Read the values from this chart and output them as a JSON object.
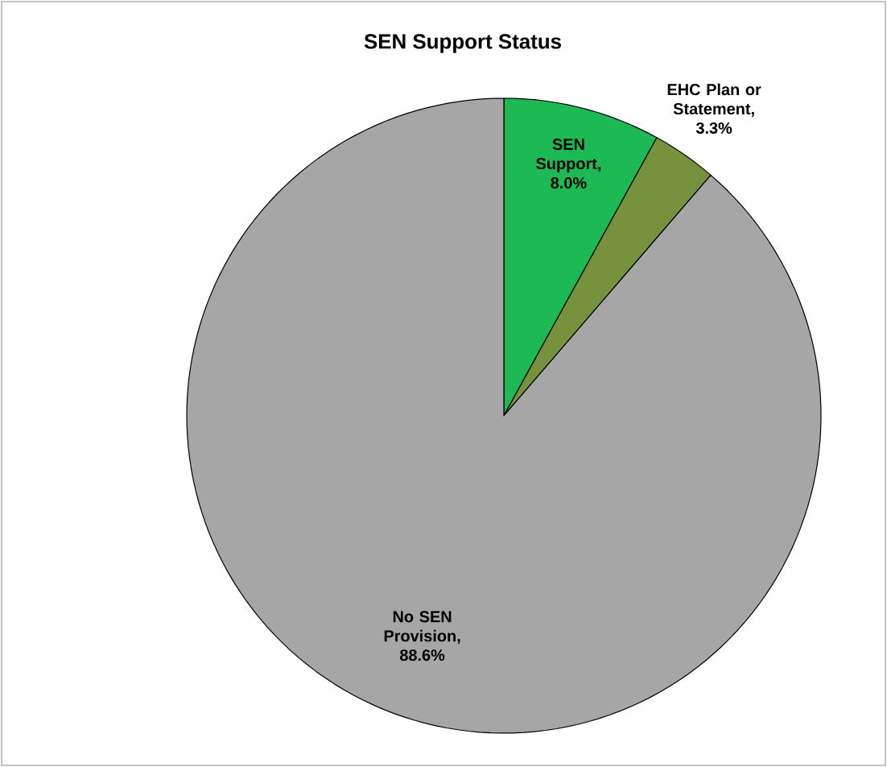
{
  "chart_data": {
    "type": "pie",
    "title": "SEN Support Status",
    "categories": [
      "SEN Support",
      "EHC Plan or Statement",
      "No SEN Provision"
    ],
    "values": [
      8.0,
      3.3,
      88.6
    ],
    "colors": [
      "#1db954",
      "#76923c",
      "#a6a6a6"
    ],
    "value_labels": [
      ", 8.0%",
      ", 3.3%",
      ", 88.6%"
    ]
  }
}
